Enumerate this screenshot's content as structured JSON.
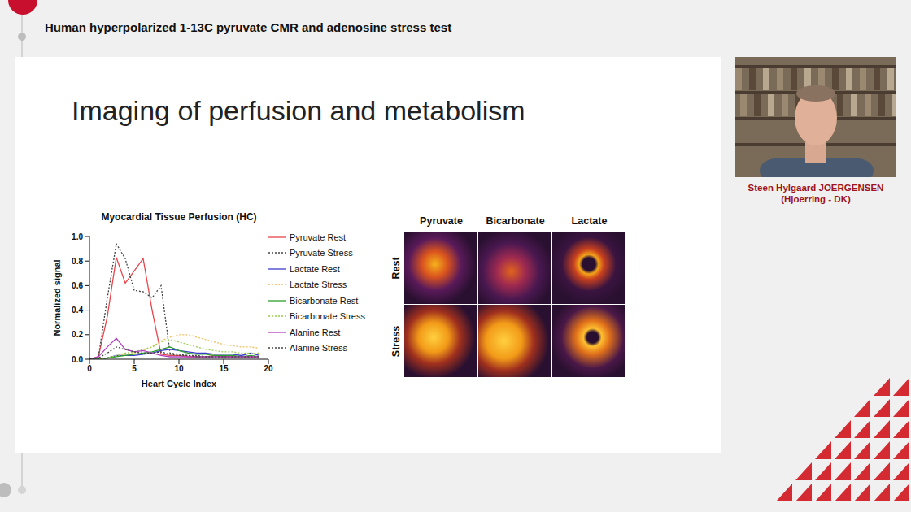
{
  "header": {
    "title": "Human hyperpolarized 1-13C pyruvate CMR and adenosine stress test"
  },
  "slide": {
    "title": "Imaging of perfusion and metabolism"
  },
  "chart_data": {
    "type": "line",
    "title": "Myocardial Tissue Perfusion (HC)",
    "x_label": "Heart Cycle Index",
    "y_label": "Normalized signal",
    "x": [
      0,
      1,
      2,
      3,
      4,
      5,
      6,
      7,
      8,
      9,
      10,
      11,
      12,
      13,
      14,
      15,
      16,
      17,
      18,
      19
    ],
    "series": [
      {
        "name": "Pyruvate Rest",
        "color": "#e8454a",
        "line_style": "solid",
        "values": [
          0,
          0.02,
          0.35,
          0.83,
          0.62,
          0.72,
          0.82,
          0.4,
          0.04,
          0.03,
          0.03,
          0.02,
          0.02,
          0.02,
          0.03,
          0.02,
          0.02,
          0.02,
          0.02,
          0.02
        ]
      },
      {
        "name": "Pyruvate Stress",
        "color": "#444444",
        "line_style": "dotted",
        "values": [
          0,
          0.02,
          0.5,
          0.94,
          0.82,
          0.56,
          0.55,
          0.5,
          0.6,
          0.05,
          0.04,
          0.03,
          0.03,
          0.02,
          0.02,
          0.02,
          0.02,
          0.02,
          0.02,
          0.02
        ]
      },
      {
        "name": "Lactate Rest",
        "color": "#3b3bcc",
        "line_style": "solid",
        "values": [
          0,
          0,
          0.01,
          0.03,
          0.03,
          0.03,
          0.04,
          0.05,
          0.07,
          0.08,
          0.07,
          0.06,
          0.05,
          0.05,
          0.04,
          0.04,
          0.04,
          0.03,
          0.05,
          0.03
        ]
      },
      {
        "name": "Lactate Stress",
        "color": "#f0c060",
        "line_style": "dotted",
        "values": [
          0,
          0,
          0.01,
          0.03,
          0.04,
          0.05,
          0.07,
          0.1,
          0.15,
          0.18,
          0.2,
          0.2,
          0.18,
          0.16,
          0.14,
          0.12,
          0.11,
          0.1,
          0.1,
          0.09
        ]
      },
      {
        "name": "Bicarbonate Rest",
        "color": "#2ca02c",
        "line_style": "solid",
        "values": [
          0,
          0,
          0.01,
          0.02,
          0.03,
          0.04,
          0.05,
          0.06,
          0.08,
          0.1,
          0.07,
          0.05,
          0.04,
          0.04,
          0.03,
          0.03,
          0.03,
          0.02,
          0.03,
          0.02
        ]
      },
      {
        "name": "Bicarbonate Stress",
        "color": "#9acd50",
        "line_style": "dotted",
        "values": [
          0,
          0,
          0.01,
          0.03,
          0.05,
          0.06,
          0.08,
          0.1,
          0.14,
          0.16,
          0.14,
          0.12,
          0.1,
          0.08,
          0.07,
          0.06,
          0.06,
          0.05,
          0.05,
          0.05
        ]
      },
      {
        "name": "Alanine Rest",
        "color": "#b040c0",
        "line_style": "solid",
        "values": [
          0,
          0.02,
          0.1,
          0.17,
          0.08,
          0.06,
          0.07,
          0.05,
          0.03,
          0.02,
          0.02,
          0.02,
          0.02,
          0.02,
          0.02,
          0.02,
          0.02,
          0.02,
          0.02,
          0.02
        ]
      },
      {
        "name": "Alanine Stress",
        "color": "#444444",
        "line_style": "dotted",
        "values": [
          0,
          0.01,
          0.05,
          0.1,
          0.08,
          0.06,
          0.05,
          0.05,
          0.06,
          0.04,
          0.03,
          0.03,
          0.02,
          0.02,
          0.02,
          0.02,
          0.02,
          0.02,
          0.02,
          0.02
        ]
      }
    ],
    "xlim": [
      0,
      20
    ],
    "xticks": [
      0,
      5,
      10,
      15,
      20
    ],
    "ylim": [
      0,
      1
    ],
    "yticks": [
      {
        "value": 0,
        "label": "0.0"
      },
      {
        "value": 0.2,
        "label": "0.2"
      },
      {
        "value": 0.4,
        "label": "0.4"
      },
      {
        "value": 0.6,
        "label": "0.6"
      },
      {
        "value": 0.8,
        "label": "0.8"
      },
      {
        "value": 1,
        "label": "1.0"
      }
    ],
    "grid": false,
    "legend": "right"
  },
  "image_grid": {
    "columns": [
      "Pyruvate",
      "Bicarbonate",
      "Lactate"
    ],
    "rows": [
      "Rest",
      "Stress"
    ]
  },
  "presenter": {
    "name": "Steen Hylgaard JOERGENSEN",
    "location": "(Hjoerring - DK)"
  }
}
